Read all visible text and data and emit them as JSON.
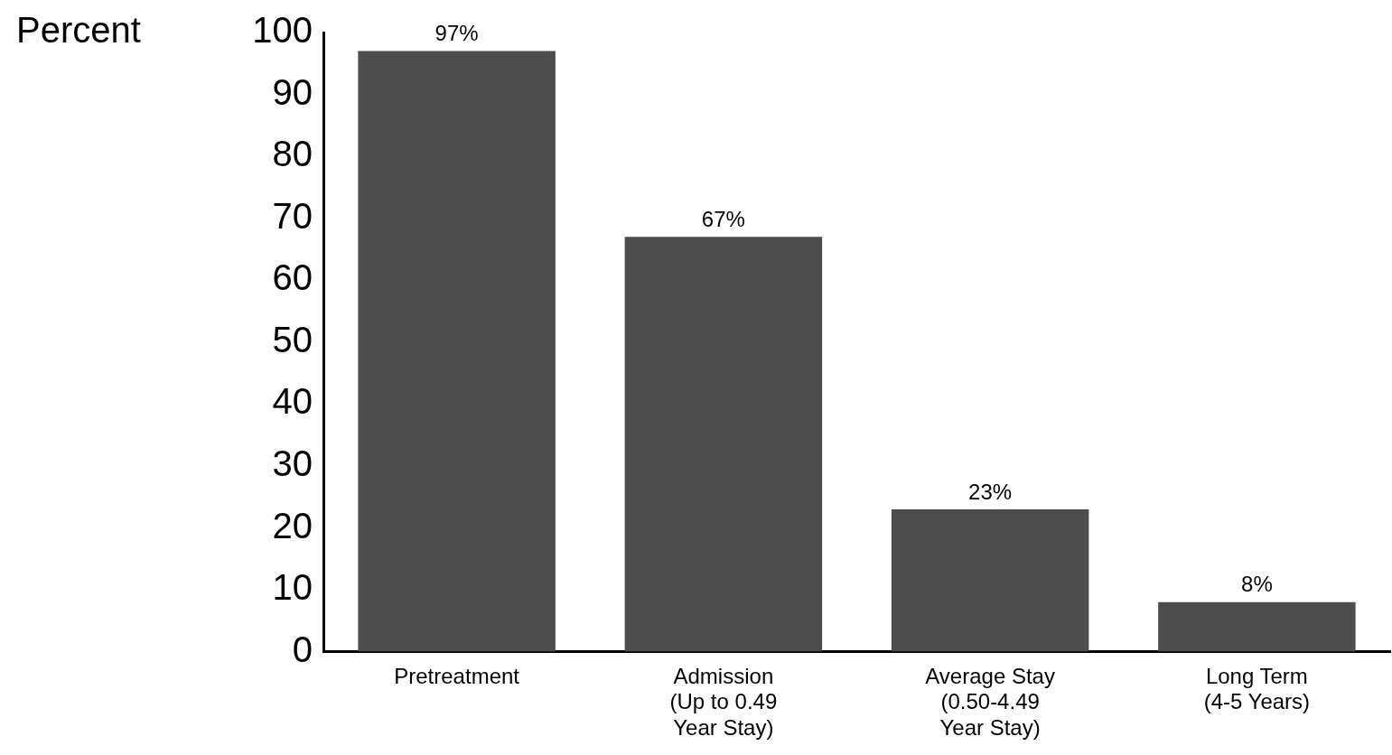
{
  "chart_data": {
    "type": "bar",
    "ylabel": "Percent",
    "categories": [
      "Pretreatment",
      "Admission\n(Up to 0.49\nYear Stay)",
      "Average Stay\n(0.50-4.49\nYear Stay)",
      "Long Term\n(4-5 Years)"
    ],
    "values": [
      97,
      67,
      23,
      8
    ],
    "value_labels": [
      "97%",
      "67%",
      "23%",
      "8%"
    ],
    "color": "#4d4d4d",
    "ylim": [
      0,
      100
    ],
    "yticks": [
      0,
      10,
      20,
      30,
      40,
      50,
      60,
      70,
      80,
      90,
      100
    ],
    "grid": false,
    "legend": false
  }
}
